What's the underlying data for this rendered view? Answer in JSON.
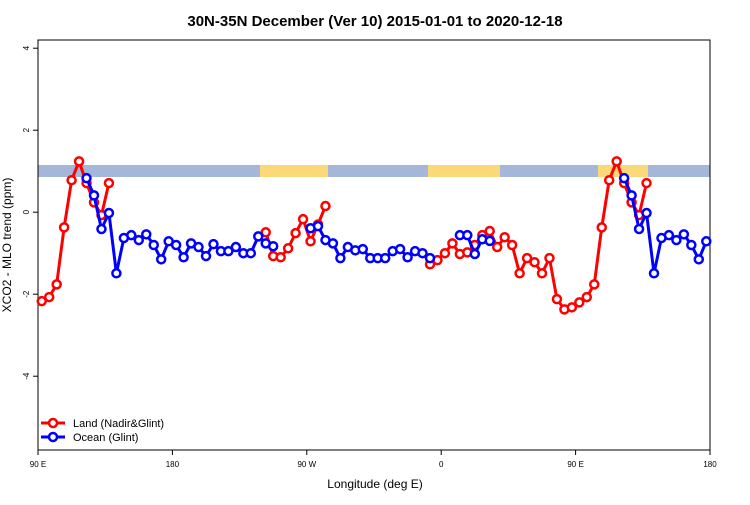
{
  "chart_data": {
    "type": "line",
    "title": "30N-35N December (Ver 10)   2015-01-01 to 2020-12-18",
    "xlabel": "Longitude (deg E)",
    "ylabel": "XCO2 - MLO trend (ppm)",
    "xlim": [
      90,
      540
    ],
    "ylim": [
      -5.8,
      4.2
    ],
    "xticks": [
      {
        "value": 90,
        "label": "90 E"
      },
      180,
      {
        "value": 270,
        "label": "90 W"
      },
      {
        "value": 360,
        "label": "0"
      },
      {
        "value": 450,
        "label": "90 E"
      },
      {
        "value": 540,
        "label": "180"
      }
    ],
    "yticks": [
      4,
      2,
      0,
      -2,
      -4
    ],
    "legend": "bottom-left",
    "x": [
      92.5,
      97.5,
      102.5,
      107.5,
      112.5,
      117.5,
      122.5,
      127.5,
      132.5,
      137.5,
      142.5,
      147.5,
      152.5,
      157.5,
      162.5,
      167.5,
      172.5,
      177.5,
      182.5,
      187.5,
      192.5,
      197.5,
      202.5,
      207.5,
      212.5,
      217.5,
      222.5,
      227.5,
      232.5,
      237.5,
      242.5,
      247.5,
      252.5,
      257.5,
      262.5,
      267.5,
      272.5,
      277.5,
      282.5,
      287.5,
      292.5,
      297.5,
      302.5,
      307.5,
      312.5,
      317.5,
      322.5,
      327.5,
      332.5,
      337.5,
      342.5,
      347.5,
      352.5,
      357.5,
      362.5,
      367.5,
      372.5,
      377.5,
      382.5,
      387.5,
      392.5,
      397.5,
      402.5,
      407.5,
      412.5,
      417.5,
      422.5,
      427.5,
      432.5,
      437.5,
      442.5,
      447.5,
      452.5,
      457.5,
      462.5,
      467.5,
      472.5,
      477.5,
      482.5,
      487.5,
      492.5,
      497.5,
      502.5,
      507.5,
      512.5,
      517.5,
      522.5,
      527.5,
      532.5,
      537.5
    ],
    "series": [
      {
        "name": "Land (Nadir&Glint)",
        "color": "#ff0000",
        "values": [
          -2.17,
          -2.07,
          -1.76,
          -0.37,
          0.78,
          1.24,
          0.71,
          0.24,
          -0.07,
          0.71,
          null,
          null,
          null,
          null,
          null,
          null,
          null,
          null,
          null,
          null,
          null,
          null,
          null,
          null,
          null,
          null,
          null,
          null,
          null,
          null,
          -0.49,
          -1.07,
          -1.1,
          -0.88,
          -0.51,
          -0.17,
          -0.71,
          -0.3,
          0.15,
          null,
          null,
          null,
          null,
          null,
          null,
          null,
          null,
          null,
          null,
          null,
          null,
          null,
          -1.27,
          -1.17,
          -1.0,
          -0.76,
          -1.02,
          -0.98,
          -0.8,
          -0.56,
          -0.46,
          -0.85,
          -0.61,
          -0.8,
          -1.49,
          -1.12,
          -1.22,
          -1.49,
          -1.12,
          -2.12,
          -2.37,
          -2.32,
          -2.2,
          -2.07,
          -1.76,
          -0.37,
          0.78,
          1.24,
          0.71,
          0.24,
          -0.07,
          0.71,
          null,
          null,
          null,
          null,
          null,
          null,
          null,
          null
        ]
      },
      {
        "name": "Ocean (Glint)",
        "color": "#0000ff",
        "values": [
          null,
          null,
          null,
          null,
          null,
          null,
          0.83,
          0.41,
          -0.41,
          -0.02,
          -1.49,
          -0.63,
          -0.56,
          -0.68,
          -0.54,
          -0.8,
          -1.15,
          -0.71,
          -0.8,
          -1.1,
          -0.76,
          -0.85,
          -1.07,
          -0.78,
          -0.95,
          -0.95,
          -0.85,
          -1.0,
          -1.0,
          -0.59,
          -0.76,
          -0.83,
          null,
          null,
          null,
          null,
          -0.39,
          -0.34,
          -0.68,
          -0.76,
          -1.12,
          -0.85,
          -0.93,
          -0.9,
          -1.12,
          -1.12,
          -1.12,
          -0.95,
          -0.9,
          -1.1,
          -0.95,
          -1.0,
          -1.12,
          null,
          null,
          null,
          -0.56,
          -0.56,
          -1.02,
          -0.66,
          -0.7,
          null,
          null,
          null,
          null,
          null,
          null,
          null,
          null,
          null,
          null,
          null,
          null,
          null,
          null,
          null,
          null,
          null,
          0.83,
          0.41,
          -0.41,
          -0.02,
          -1.49,
          -0.63,
          -0.56,
          -0.68,
          -0.54,
          -0.8,
          -1.15,
          -0.71
        ]
      }
    ]
  }
}
